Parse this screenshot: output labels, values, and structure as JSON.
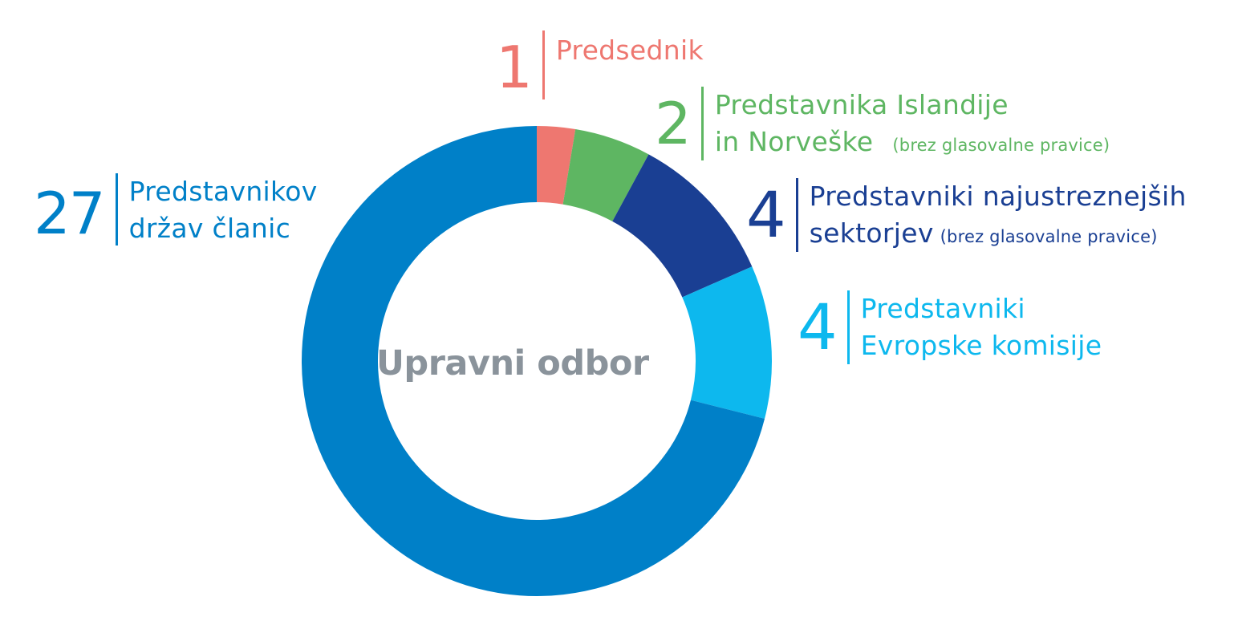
{
  "chart_data": {
    "type": "pie",
    "variant": "donut",
    "center_label": "Upravni odbor",
    "slices": [
      {
        "value": 1,
        "number": "1",
        "label_lines": [
          "Predsednik"
        ],
        "note": "",
        "color": "#ee7770"
      },
      {
        "value": 2,
        "number": "2",
        "label_lines": [
          "Predstavnika Islandije",
          "in Norveške"
        ],
        "note": "(brez glasovalne pravice)",
        "color": "#5eb662"
      },
      {
        "value": 4,
        "number": "4",
        "label_lines": [
          "Predstavniki najustreznejših",
          "sektorjev"
        ],
        "note": "(brez glasovalne pravice)",
        "color": "#1a3f93"
      },
      {
        "value": 4,
        "number": "4",
        "label_lines": [
          "Predstavniki",
          "Evropske komisije"
        ],
        "note": "",
        "color": "#0db8ee"
      },
      {
        "value": 27,
        "number": "27",
        "label_lines": [
          "Predstavnikov",
          "držav članic"
        ],
        "note": "",
        "color": "#0080c8"
      }
    ]
  }
}
